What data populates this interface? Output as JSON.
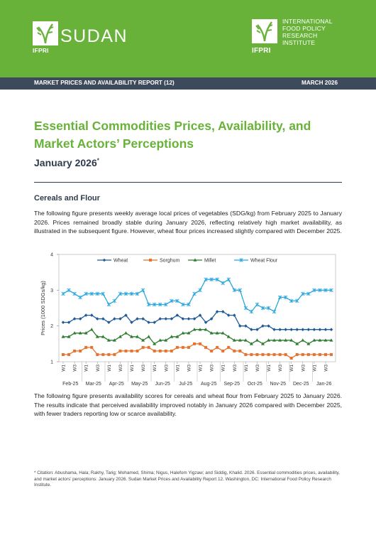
{
  "header": {
    "left_logo_text": "SUDAN",
    "left_logo_tag": "IFPRI",
    "right_logo_tag": "IFPRI",
    "right_logo_lines": [
      "INTERNATIONAL",
      "FOOD POLICY",
      "RESEARCH",
      "INSTITUTE"
    ],
    "report_label": "MARKET PRICES AND AVAILABILITY REPORT (12)",
    "date_label": "MARCH 2026",
    "brand_green": "#69b239",
    "bar_color": "#3d4a5c"
  },
  "title": "Essential Commodities Prices, Availability, and Market Actors’ Perceptions",
  "subtitle": "January 2026",
  "subtitle_mark": "*",
  "section_heading": "Cereals and Flour",
  "paragraph1": "The following figure presents weekly average local prices of vegetables (SDG/kg) from February 2025 to January 2026. Prices remained broadly stable during January 2026, reflecting relatively high market availability, as illustrated in the subsequent figure. However, wheat flour prices increased slightly compared with December 2025.",
  "paragraph2": "The following figure presents availability scores for cereals and wheat flour from February 2025 to January 2026. The results indicate that perceived availability improved notably in January 2026 compared with December 2025, with fewer traders reporting low or scarce availability.",
  "footnote": "* Citation: Abushama, Hala; Rakhy, Tarig; Mohamed, Shima; Nigus, Halefom Yigzaw; and Siddig, Khalid. 2026. Essential commodities prices, availability, and market actors’ perceptions: January 2026. Sudan Market Prices and Availability Report 12. Washington, DC: International Food Policy Research Institute.",
  "chart_data": {
    "type": "line",
    "ylabel": "Prices (1000 SDGs/kg)",
    "ylim": [
      1,
      4
    ],
    "yticks": [
      "1",
      "2",
      "3",
      "4"
    ],
    "legend_position": "top",
    "week_labels": [
      "W1",
      "W3",
      "W1",
      "W3",
      "W1",
      "W3",
      "W1",
      "W3",
      "W1",
      "W3",
      "W1",
      "W3",
      "W1",
      "W3",
      "W1",
      "W3",
      "W1",
      "W3",
      "W1",
      "W3",
      "W1",
      "W3",
      "W1",
      "W3"
    ],
    "months": [
      "Feb-25",
      "Mar-25",
      "Apr-25",
      "May-25",
      "Jun-25",
      "Jul-25",
      "Aug-25",
      "Sep-25",
      "Oct-25",
      "Nov-25",
      "Dec-25",
      "Jan-26"
    ],
    "series": [
      {
        "name": "Wheat",
        "color": "#1f5b99",
        "marker": "diamond",
        "values": [
          2.1,
          2.1,
          2.2,
          2.2,
          2.3,
          2.3,
          2.2,
          2.2,
          2.1,
          2.2,
          2.2,
          2.3,
          2.1,
          2.2,
          2.2,
          2.1,
          2.1,
          2.2,
          2.2,
          2.2,
          2.3,
          2.2,
          2.2,
          2.2,
          2.3,
          2.1,
          2.2,
          2.4,
          2.4,
          2.3,
          2.3,
          2.0,
          2.0,
          1.9,
          1.9,
          2.0,
          2.0,
          1.9,
          1.9,
          1.9,
          1.9,
          1.9,
          1.9,
          1.9,
          1.9,
          1.9,
          1.9,
          1.9
        ]
      },
      {
        "name": "Sorghum",
        "color": "#e8722c",
        "marker": "square",
        "values": [
          1.2,
          1.2,
          1.3,
          1.3,
          1.4,
          1.4,
          1.2,
          1.2,
          1.2,
          1.2,
          1.3,
          1.3,
          1.3,
          1.3,
          1.4,
          1.4,
          1.3,
          1.3,
          1.3,
          1.3,
          1.4,
          1.4,
          1.4,
          1.5,
          1.5,
          1.4,
          1.3,
          1.4,
          1.3,
          1.4,
          1.3,
          1.3,
          1.2,
          1.2,
          1.2,
          1.2,
          1.2,
          1.2,
          1.2,
          1.2,
          1.1,
          1.2,
          1.2,
          1.2,
          1.2,
          1.2,
          1.2,
          1.2
        ]
      },
      {
        "name": "Millet",
        "color": "#2e7d32",
        "marker": "triangle",
        "values": [
          1.7,
          1.7,
          1.8,
          1.8,
          1.8,
          1.9,
          1.7,
          1.7,
          1.6,
          1.6,
          1.7,
          1.8,
          1.7,
          1.7,
          1.6,
          1.7,
          1.5,
          1.6,
          1.6,
          1.7,
          1.7,
          1.8,
          1.8,
          1.9,
          1.9,
          1.9,
          1.8,
          1.8,
          1.8,
          1.7,
          1.6,
          1.6,
          1.6,
          1.5,
          1.6,
          1.5,
          1.6,
          1.6,
          1.6,
          1.6,
          1.6,
          1.5,
          1.6,
          1.5,
          1.6,
          1.6,
          1.6,
          1.6
        ]
      },
      {
        "name": "Wheat Flour",
        "color": "#2aa7df",
        "marker": "star",
        "values": [
          2.9,
          3.0,
          2.9,
          2.8,
          2.9,
          2.9,
          2.9,
          2.9,
          2.6,
          2.7,
          2.9,
          2.9,
          2.9,
          2.9,
          3.0,
          2.6,
          2.6,
          2.6,
          2.6,
          2.7,
          2.7,
          2.6,
          2.6,
          2.9,
          3.0,
          3.3,
          3.3,
          3.3,
          3.2,
          3.3,
          3.0,
          3.0,
          2.5,
          2.4,
          2.6,
          2.5,
          2.5,
          2.4,
          2.8,
          2.8,
          2.7,
          2.7,
          2.9,
          2.9,
          3.0,
          3.0,
          3.0,
          3.0
        ]
      }
    ]
  }
}
